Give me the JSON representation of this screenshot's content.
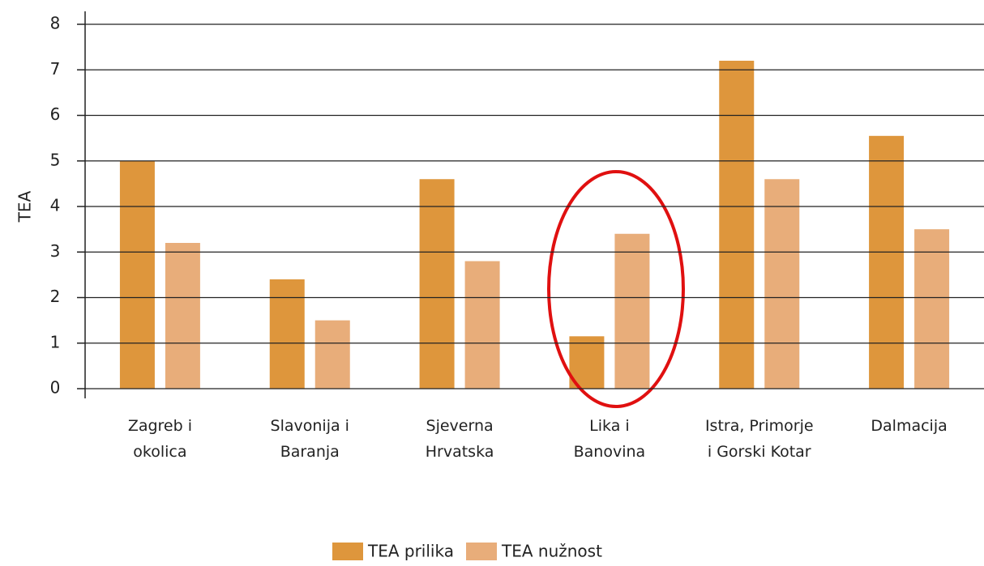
{
  "chart_data": {
    "type": "bar",
    "y_label": "TEA",
    "categories": [
      "Zagreb i okolica",
      "Slavonija i Baranja",
      "Sjeverna Hrvatska",
      "Lika i Banovina",
      "Istra, Primorje i Gorski Kotar",
      "Dalmacija"
    ],
    "series": [
      {
        "name": "TEA prilika",
        "color": "#de963c",
        "values": [
          5.0,
          2.4,
          4.6,
          1.15,
          7.2,
          5.55
        ]
      },
      {
        "name": "TEA nužnost",
        "color": "#e8ad7a",
        "values": [
          3.2,
          1.5,
          2.8,
          3.4,
          4.6,
          3.5
        ]
      }
    ],
    "ylim": [
      0,
      8
    ],
    "yticks": [
      0,
      1,
      2,
      3,
      4,
      5,
      6,
      7,
      8
    ],
    "grid": true,
    "legend": "bottom"
  }
}
